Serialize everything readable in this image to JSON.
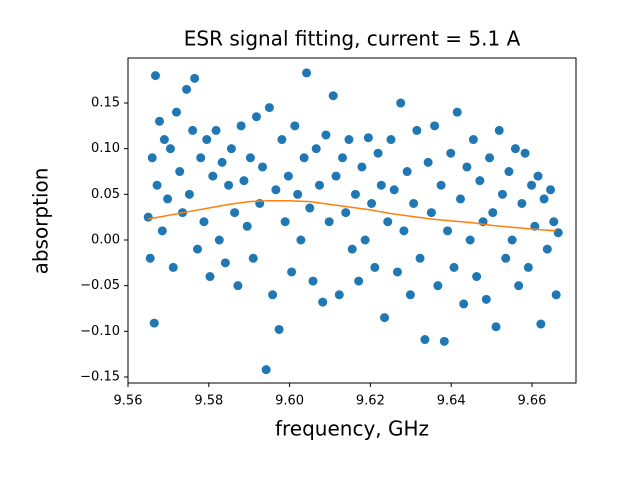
{
  "chart_data": {
    "type": "scatter",
    "title": "ESR signal fitting, current = 5.1 A",
    "xlabel": "frequency, GHz",
    "ylabel": "absorption",
    "xlim": [
      9.56,
      9.6709
    ],
    "ylim": [
      -0.1566,
      0.1993
    ],
    "xticks": [
      9.56,
      9.58,
      {
        "value": 9.6,
        "label": "9.60"
      },
      9.62,
      9.64,
      9.66
    ],
    "yticks": [
      {
        "value": -0.15,
        "label": "−0.15"
      },
      {
        "value": -0.1,
        "label": "−0.10"
      },
      {
        "value": -0.05,
        "label": "−0.05"
      },
      {
        "value": 0,
        "label": "0.00"
      },
      0.05,
      {
        "value": 0.1,
        "label": "0.10"
      },
      0.15
    ],
    "series": [
      {
        "type": "scatter",
        "color": "#1f77b4",
        "x": [
          9.565,
          9.5655,
          9.566,
          9.5665,
          9.5668,
          9.5672,
          9.5678,
          9.5685,
          9.569,
          9.5698,
          9.5705,
          9.5712,
          9.572,
          9.5728,
          9.5735,
          9.5745,
          9.5752,
          9.576,
          9.5765,
          9.5772,
          9.578,
          9.5788,
          9.5795,
          9.5803,
          9.581,
          9.5818,
          9.5826,
          9.5833,
          9.5841,
          9.5849,
          9.5856,
          9.5864,
          9.5872,
          9.588,
          9.5887,
          9.5895,
          9.5903,
          9.591,
          9.5918,
          9.5926,
          9.5933,
          9.5942,
          9.595,
          9.5958,
          9.5966,
          9.5974,
          9.5981,
          9.5989,
          9.5997,
          9.6005,
          9.6013,
          9.602,
          9.6028,
          9.6036,
          9.6042,
          9.605,
          9.6058,
          9.6066,
          9.6074,
          9.6082,
          9.609,
          9.6098,
          9.6108,
          9.6115,
          9.6123,
          9.6131,
          9.6139,
          9.6147,
          9.6155,
          9.6163,
          9.6171,
          9.6179,
          9.6187,
          9.6195,
          9.6203,
          9.6211,
          9.6219,
          9.6227,
          9.6235,
          9.6243,
          9.6251,
          9.6259,
          9.6267,
          9.6275,
          9.6283,
          9.6291,
          9.6299,
          9.6307,
          9.6315,
          9.6323,
          9.6335,
          9.6343,
          9.6351,
          9.6359,
          9.6367,
          9.6375,
          9.6383,
          9.6391,
          9.6399,
          9.6407,
          9.6415,
          9.6423,
          9.6431,
          9.6439,
          9.6447,
          9.6455,
          9.6463,
          9.6471,
          9.6479,
          9.6487,
          9.6495,
          9.6503,
          9.6511,
          9.6519,
          9.6527,
          9.6535,
          9.6543,
          9.6551,
          9.6559,
          9.6567,
          9.6575,
          9.6583,
          9.6591,
          9.6599,
          9.6607,
          9.6615,
          9.6622,
          9.663,
          9.6638,
          9.6646,
          9.6654,
          9.666,
          9.6665
        ],
        "y": [
          0.025,
          -0.02,
          0.09,
          -0.091,
          0.18,
          0.06,
          0.13,
          0.01,
          0.11,
          0.045,
          0.1,
          -0.03,
          0.14,
          0.075,
          0.03,
          0.165,
          0.05,
          0.12,
          0.177,
          -0.01,
          0.09,
          0.02,
          0.11,
          -0.04,
          0.07,
          0.12,
          0.0,
          0.085,
          -0.025,
          0.06,
          0.1,
          0.03,
          -0.05,
          0.125,
          0.065,
          0.015,
          0.09,
          -0.02,
          0.135,
          0.04,
          0.08,
          -0.142,
          0.145,
          -0.06,
          0.055,
          -0.098,
          0.11,
          0.02,
          0.07,
          -0.035,
          0.125,
          0.05,
          0.0,
          0.09,
          0.183,
          0.035,
          -0.045,
          0.1,
          0.06,
          -0.068,
          0.115,
          0.02,
          0.158,
          0.07,
          -0.06,
          0.09,
          0.03,
          0.11,
          -0.01,
          0.05,
          -0.045,
          0.08,
          0.0,
          0.112,
          0.04,
          -0.03,
          0.095,
          0.06,
          -0.085,
          0.02,
          0.11,
          0.055,
          -0.035,
          0.15,
          0.01,
          0.075,
          -0.06,
          0.04,
          0.12,
          -0.02,
          -0.109,
          0.085,
          0.03,
          0.125,
          -0.05,
          0.06,
          -0.111,
          0.01,
          0.095,
          -0.03,
          0.14,
          0.045,
          -0.07,
          0.08,
          0.0,
          0.11,
          -0.04,
          0.065,
          0.02,
          -0.065,
          0.09,
          0.03,
          -0.095,
          0.12,
          0.05,
          -0.02,
          0.075,
          0.0,
          0.1,
          -0.05,
          0.04,
          0.095,
          -0.03,
          0.06,
          0.015,
          0.07,
          -0.092,
          0.045,
          -0.01,
          0.055,
          0.02,
          -0.06,
          0.008
        ]
      },
      {
        "type": "line",
        "color": "#ff7f0e",
        "x": [
          9.565,
          9.57,
          9.575,
          9.58,
          9.585,
          9.59,
          9.595,
          9.6,
          9.605,
          9.61,
          9.615,
          9.62,
          9.625,
          9.63,
          9.635,
          9.64,
          9.645,
          9.65,
          9.655,
          9.66,
          9.666
        ],
        "y": [
          0.023,
          0.027,
          0.031,
          0.035,
          0.039,
          0.042,
          0.043,
          0.043,
          0.042,
          0.039,
          0.036,
          0.033,
          0.029,
          0.026,
          0.023,
          0.021,
          0.019,
          0.016,
          0.014,
          0.012,
          0.01
        ]
      }
    ]
  }
}
